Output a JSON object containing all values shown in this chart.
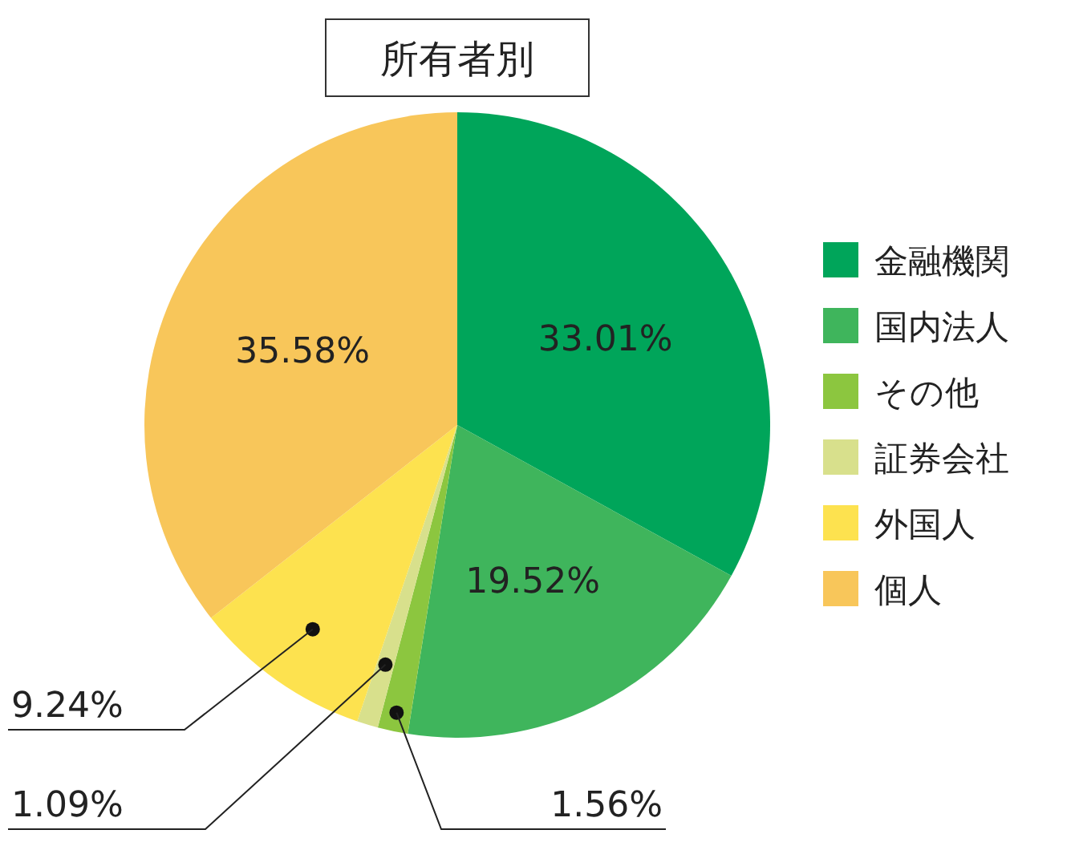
{
  "chart_data": {
    "type": "pie",
    "title": "所有者別",
    "categories": [
      "金融機関",
      "国内法人",
      "その他",
      "証券会社",
      "外国人",
      "個人"
    ],
    "values": [
      33.01,
      19.52,
      1.56,
      1.09,
      9.24,
      35.58
    ],
    "colors": [
      "#00a55a",
      "#3fb55c",
      "#8cc63f",
      "#d8e08c",
      "#fde24f",
      "#f8c65a"
    ],
    "value_labels": [
      "33.01%",
      "19.52%",
      "1.56%",
      "1.09%",
      "9.24%",
      "35.58%"
    ],
    "legend": "right"
  }
}
